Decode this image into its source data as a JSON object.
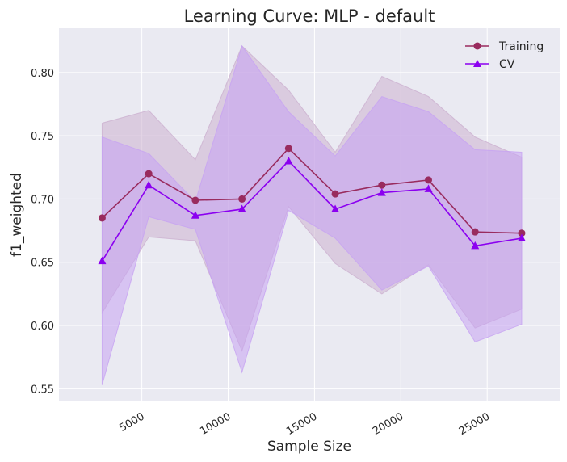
{
  "chart_data": {
    "type": "line",
    "title": "Learning Curve: MLP - default",
    "xlabel": "Sample Size",
    "ylabel": "f1_weighted",
    "xlim": [
      200,
      29200
    ],
    "ylim": [
      0.54,
      0.835
    ],
    "xticks": [
      5000,
      10000,
      15000,
      20000,
      25000
    ],
    "yticks": [
      0.55,
      0.6,
      0.65,
      0.7,
      0.75,
      0.8
    ],
    "ytick_labels": [
      "0.55",
      "0.60",
      "0.65",
      "0.70",
      "0.75",
      "0.80"
    ],
    "grid": true,
    "legend_position": "top-right",
    "x": [
      2700,
      5400,
      8100,
      10800,
      13500,
      16200,
      18900,
      21600,
      24300,
      27000
    ],
    "series": [
      {
        "name": "Training",
        "color": "#992b5e",
        "marker": "circle",
        "values": [
          0.685,
          0.72,
          0.699,
          0.7,
          0.74,
          0.704,
          0.711,
          0.715,
          0.674,
          0.673
        ],
        "band_lower": [
          0.61,
          0.67,
          0.667,
          0.58,
          0.694,
          0.649,
          0.625,
          0.648,
          0.598,
          0.613
        ],
        "band_upper": [
          0.76,
          0.77,
          0.731,
          0.821,
          0.786,
          0.737,
          0.797,
          0.781,
          0.749,
          0.733
        ],
        "band_color": "#ccb0cf"
      },
      {
        "name": "CV",
        "color": "#8b00f0",
        "marker": "triangle",
        "values": [
          0.651,
          0.711,
          0.687,
          0.692,
          0.73,
          0.692,
          0.705,
          0.708,
          0.663,
          0.669
        ],
        "band_lower": [
          0.553,
          0.686,
          0.676,
          0.563,
          0.691,
          0.669,
          0.628,
          0.647,
          0.587,
          0.601
        ],
        "band_upper": [
          0.749,
          0.736,
          0.698,
          0.821,
          0.769,
          0.734,
          0.781,
          0.769,
          0.739,
          0.737
        ],
        "band_color": "#c7a3f2"
      }
    ]
  }
}
